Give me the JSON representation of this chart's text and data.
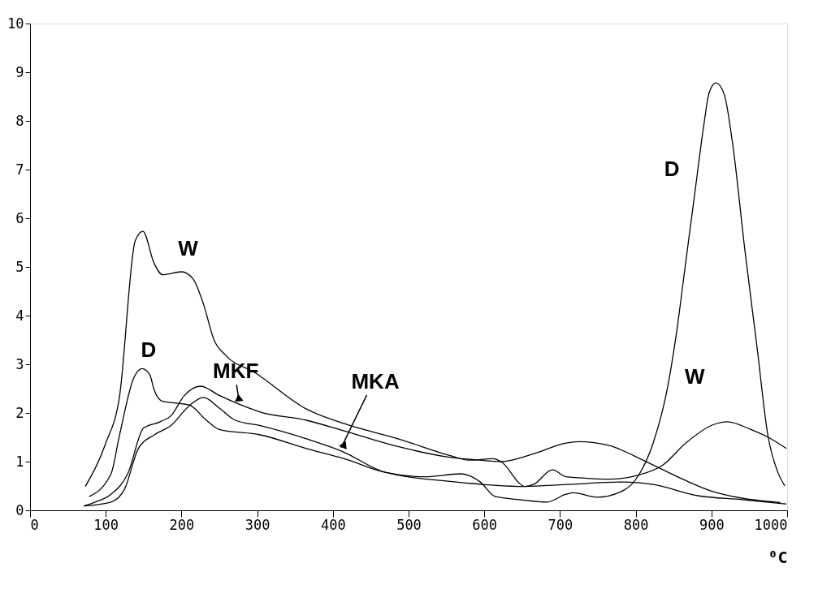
{
  "chart_data": {
    "type": "line",
    "xlabel": "⁰C",
    "xlim": [
      0,
      1000
    ],
    "ylim": [
      0,
      10
    ],
    "xticks": [
      0,
      100,
      200,
      300,
      400,
      500,
      600,
      700,
      800,
      900,
      1000
    ],
    "yticks": [
      0,
      1,
      2,
      3,
      4,
      5,
      6,
      7,
      8,
      9,
      10
    ],
    "grid": false,
    "marker": "none",
    "line_style": "solid",
    "series": [
      {
        "color": "#000000",
        "x": [
          73,
          100,
          118,
          139,
          149,
          164,
          175,
          200,
          215,
          229,
          243,
          258,
          297,
          365,
          415,
          486,
          558,
          579,
          612,
          622,
          654,
          665,
          690,
          708,
          725,
          765,
          803,
          835,
          866,
          901,
          921,
          952,
          975,
          999
        ],
        "values": [
          0.49,
          1.38,
          2.32,
          5.54,
          5.73,
          5.07,
          4.84,
          4.9,
          4.76,
          4.24,
          3.5,
          3.19,
          2.83,
          2.08,
          1.78,
          1.47,
          1.11,
          1.03,
          1.06,
          1.0,
          0.49,
          0.53,
          0.83,
          0.69,
          0.67,
          0.64,
          0.72,
          0.92,
          1.38,
          1.75,
          1.82,
          1.66,
          1.5,
          1.27
        ]
      },
      {
        "color": "#000000",
        "x": [
          78,
          107,
          118,
          137,
          148,
          158,
          164,
          175,
          200,
          211,
          233,
          250,
          304,
          365,
          415,
          469,
          522,
          569,
          579,
          594,
          615,
          647,
          683,
          708,
          718,
          749,
          784,
          803,
          823,
          842,
          854,
          866,
          878,
          890,
          897,
          906,
          917,
          928,
          944,
          960,
          975,
          987,
          997
        ],
        "values": [
          0.28,
          0.75,
          1.53,
          2.72,
          2.91,
          2.79,
          2.47,
          2.24,
          2.19,
          2.16,
          1.85,
          1.66,
          1.55,
          1.27,
          1.06,
          0.78,
          0.69,
          0.75,
          0.72,
          0.59,
          0.28,
          0.22,
          0.17,
          0.33,
          0.36,
          0.27,
          0.41,
          0.7,
          1.38,
          2.52,
          3.66,
          5.09,
          6.51,
          7.92,
          8.58,
          8.78,
          8.54,
          7.53,
          5.37,
          3.38,
          1.5,
          0.81,
          0.5
        ]
      },
      {
        "color": "#000000",
        "x": [
          71,
          86,
          107,
          129,
          150,
          172,
          186,
          204,
          225,
          250,
          276,
          304,
          365,
          415,
          486,
          558,
          594,
          622,
          665,
          708,
          725,
          765,
          815,
          862,
          901,
          940,
          991
        ],
        "values": [
          0.09,
          0.17,
          0.33,
          0.75,
          1.69,
          1.82,
          1.94,
          2.36,
          2.55,
          2.36,
          2.18,
          2.02,
          1.85,
          1.63,
          1.31,
          1.08,
          1.03,
          1.0,
          1.16,
          1.38,
          1.41,
          1.33,
          0.99,
          0.64,
          0.39,
          0.25,
          0.16
        ]
      },
      {
        "color": "#000000",
        "x": [
          71,
          107,
          125,
          143,
          164,
          186,
          211,
          229,
          250,
          271,
          304,
          365,
          411,
          469,
          558,
          654,
          708,
          784,
          823,
          882,
          940,
          999
        ],
        "values": [
          0.09,
          0.17,
          0.44,
          1.27,
          1.55,
          1.74,
          2.16,
          2.32,
          2.1,
          1.85,
          1.74,
          1.47,
          1.22,
          0.78,
          0.59,
          0.49,
          0.53,
          0.58,
          0.53,
          0.3,
          0.22,
          0.13
        ]
      }
    ],
    "annotations": [
      {
        "text": "W",
        "x": 200,
        "y": 4.9
      },
      {
        "text": "D",
        "x": 148,
        "y": 2.91
      },
      {
        "text": "MKF",
        "x": 276,
        "y": 2.18
      },
      {
        "text": "MKA",
        "x": 411,
        "y": 1.22
      },
      {
        "text": "D",
        "x": 882,
        "y": 7.0
      },
      {
        "text": "W",
        "x": 921,
        "y": 1.82
      }
    ]
  }
}
